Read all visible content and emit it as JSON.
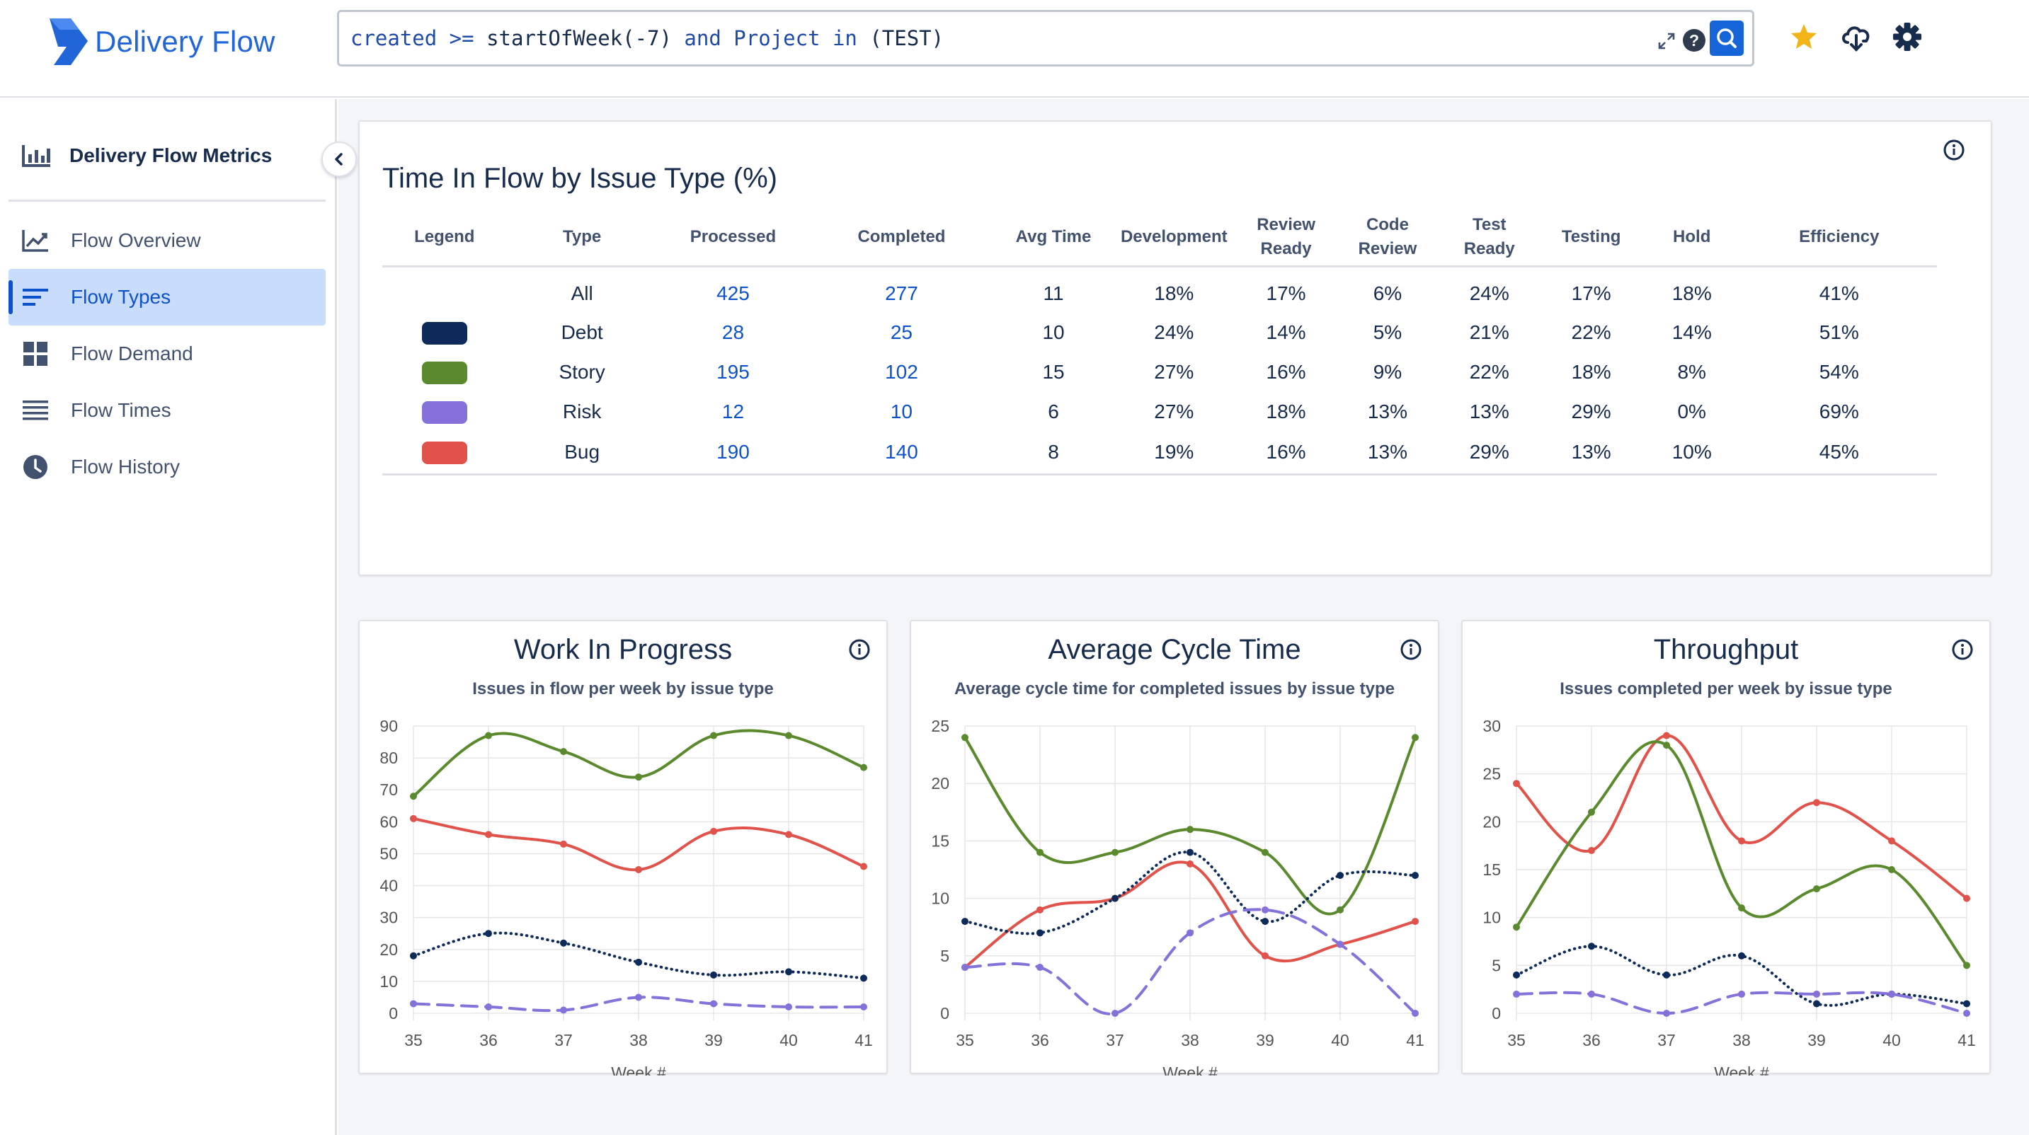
{
  "app": {
    "name": "Delivery Flow",
    "accent": "#2165d9"
  },
  "search": {
    "query_parts": [
      {
        "text": "created",
        "kind": "kw"
      },
      {
        "text": " >= ",
        "kind": "kw"
      },
      {
        "text": "startOfWeek(-7)",
        "kind": "fn"
      },
      {
        "text": " and ",
        "kind": "kw"
      },
      {
        "text": "Project",
        "kind": "kw"
      },
      {
        "text": " in ",
        "kind": "kw"
      },
      {
        "text": "(TEST)",
        "kind": "fn"
      }
    ],
    "help_label": "?"
  },
  "sidebar": {
    "title": "Delivery Flow Metrics",
    "items": [
      {
        "label": "Flow Overview",
        "icon": "line-chart-icon",
        "active": false
      },
      {
        "label": "Flow Types",
        "icon": "bars-left-icon",
        "active": true
      },
      {
        "label": "Flow Demand",
        "icon": "grid-icon",
        "active": false
      },
      {
        "label": "Flow Times",
        "icon": "list-icon",
        "active": false
      },
      {
        "label": "Flow History",
        "icon": "clock-icon",
        "active": false
      }
    ]
  },
  "table_card": {
    "title": "Time In Flow by Issue Type (%)",
    "headers": [
      "Legend",
      "Type",
      "Processed",
      "Completed",
      "Avg Time",
      "Development",
      "Review\nReady",
      "Code\nReview",
      "Test\nReady",
      "Testing",
      "Hold",
      "Efficiency"
    ],
    "rows": [
      {
        "color": "",
        "type": "All",
        "processed": "425",
        "completed": "277",
        "avg": "11",
        "dev": "18%",
        "rr": "17%",
        "cr": "6%",
        "tr": "24%",
        "testing": "17%",
        "hold": "18%",
        "eff": "41%"
      },
      {
        "color": "#0d2a5a",
        "type": "Debt",
        "processed": "28",
        "completed": "25",
        "avg": "10",
        "dev": "24%",
        "rr": "14%",
        "cr": "5%",
        "tr": "21%",
        "testing": "22%",
        "hold": "14%",
        "eff": "51%"
      },
      {
        "color": "#5b8a2e",
        "type": "Story",
        "processed": "195",
        "completed": "102",
        "avg": "15",
        "dev": "27%",
        "rr": "16%",
        "cr": "9%",
        "tr": "22%",
        "testing": "18%",
        "hold": "8%",
        "eff": "54%"
      },
      {
        "color": "#8471d9",
        "type": "Risk",
        "processed": "12",
        "completed": "10",
        "avg": "6",
        "dev": "27%",
        "rr": "18%",
        "cr": "13%",
        "tr": "13%",
        "testing": "29%",
        "hold": "0%",
        "eff": "69%"
      },
      {
        "color": "#e0524a",
        "type": "Bug",
        "processed": "190",
        "completed": "140",
        "avg": "8",
        "dev": "19%",
        "rr": "16%",
        "cr": "13%",
        "tr": "29%",
        "testing": "13%",
        "hold": "10%",
        "eff": "45%"
      }
    ]
  },
  "chart_cards": [
    {
      "title": "Work In Progress",
      "subtitle": "Issues in flow per week by issue type"
    },
    {
      "title": "Average Cycle Time",
      "subtitle": "Average cycle time for completed issues by issue type"
    },
    {
      "title": "Throughput",
      "subtitle": "Issues completed per week by issue type"
    }
  ],
  "chart_data": [
    {
      "type": "line",
      "title": "Work In Progress",
      "subtitle": "Issues in flow per week by issue type",
      "xlabel": "Week #",
      "ylabel": "",
      "x": [
        35,
        36,
        37,
        38,
        39,
        40,
        41
      ],
      "ylim": [
        0,
        90
      ],
      "yticks": [
        0,
        10,
        20,
        30,
        40,
        50,
        60,
        70,
        80,
        90
      ],
      "series": [
        {
          "name": "Story",
          "color": "#5b8a2e",
          "style": "solid",
          "values": [
            68,
            87,
            82,
            74,
            87,
            87,
            77
          ]
        },
        {
          "name": "Bug",
          "color": "#e0524a",
          "style": "solid",
          "values": [
            61,
            56,
            53,
            45,
            57,
            56,
            46
          ]
        },
        {
          "name": "Debt",
          "color": "#0d2a5a",
          "style": "dotted",
          "values": [
            18,
            25,
            22,
            16,
            12,
            13,
            11
          ]
        },
        {
          "name": "Risk",
          "color": "#8471d9",
          "style": "dashed",
          "values": [
            3,
            2,
            1,
            5,
            3,
            2,
            2
          ]
        }
      ]
    },
    {
      "type": "line",
      "title": "Average Cycle Time",
      "subtitle": "Average cycle time for completed issues by issue type",
      "xlabel": "Week #",
      "ylabel": "",
      "x": [
        35,
        36,
        37,
        38,
        39,
        40,
        41
      ],
      "ylim": [
        0,
        25
      ],
      "yticks": [
        0,
        5,
        10,
        15,
        20,
        25
      ],
      "series": [
        {
          "name": "Story",
          "color": "#5b8a2e",
          "style": "solid",
          "values": [
            24,
            14,
            14,
            16,
            14,
            9,
            24
          ]
        },
        {
          "name": "Bug",
          "color": "#e0524a",
          "style": "solid",
          "values": [
            4,
            9,
            10,
            13,
            5,
            6,
            8
          ]
        },
        {
          "name": "Debt",
          "color": "#0d2a5a",
          "style": "dotted",
          "values": [
            8,
            7,
            10,
            14,
            8,
            12,
            12
          ]
        },
        {
          "name": "Risk",
          "color": "#8471d9",
          "style": "dashed",
          "values": [
            4,
            4,
            0,
            7,
            9,
            6,
            0
          ]
        }
      ]
    },
    {
      "type": "line",
      "title": "Throughput",
      "subtitle": "Issues completed per week by issue type",
      "xlabel": "Week #",
      "ylabel": "",
      "x": [
        35,
        36,
        37,
        38,
        39,
        40,
        41
      ],
      "ylim": [
        0,
        30
      ],
      "yticks": [
        0,
        5,
        10,
        15,
        20,
        25,
        30
      ],
      "series": [
        {
          "name": "Bug",
          "color": "#e0524a",
          "style": "solid",
          "values": [
            24,
            17,
            29,
            18,
            22,
            18,
            12
          ]
        },
        {
          "name": "Story",
          "color": "#5b8a2e",
          "style": "solid",
          "values": [
            9,
            21,
            28,
            11,
            13,
            15,
            5
          ]
        },
        {
          "name": "Debt",
          "color": "#0d2a5a",
          "style": "dotted",
          "values": [
            4,
            7,
            4,
            6,
            1,
            2,
            1
          ]
        },
        {
          "name": "Risk",
          "color": "#8471d9",
          "style": "dashed",
          "values": [
            2,
            2,
            0,
            2,
            2,
            2,
            0
          ]
        }
      ]
    }
  ]
}
